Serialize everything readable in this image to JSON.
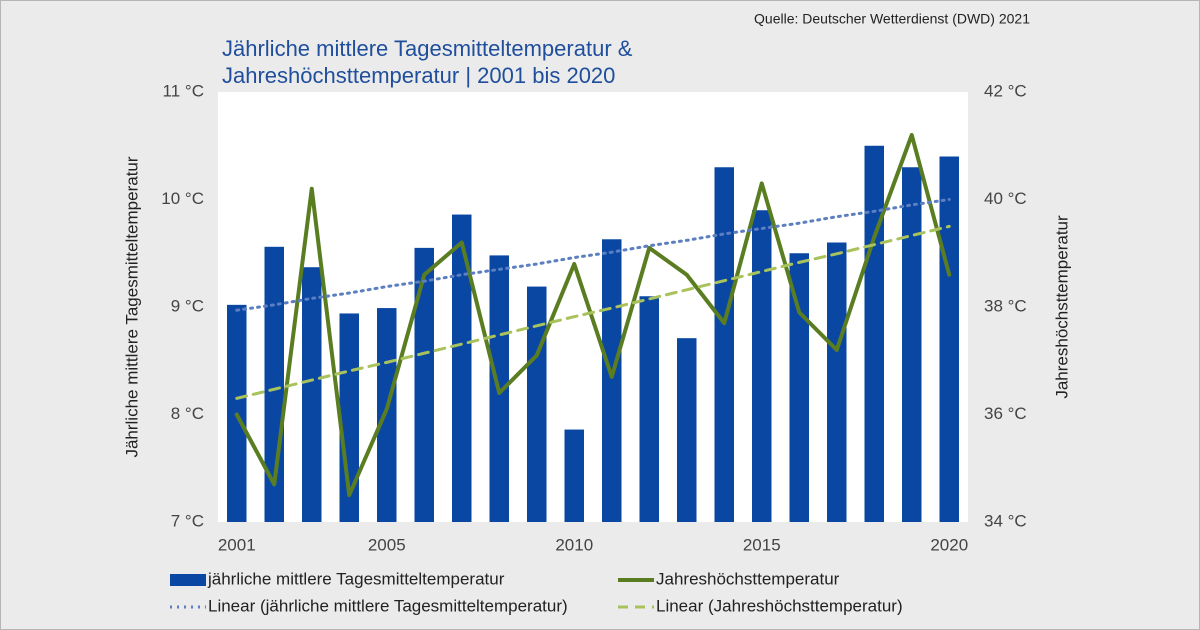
{
  "chart_data": {
    "type": "bar",
    "source": "Quelle: Deutscher Wetterdienst (DWD) 2021",
    "title": [
      "Jährliche mittlere Tagesmitteltemperatur &",
      "Jahreshöchsttemperatur | 2001 bis 2020"
    ],
    "ylabel": "Jährliche mittlere Tagesmitteltemperatur",
    "y2label": "Jahreshöchsttemperatur",
    "x": [
      2001,
      2002,
      2003,
      2004,
      2005,
      2006,
      2007,
      2008,
      2009,
      2010,
      2011,
      2012,
      2013,
      2014,
      2015,
      2016,
      2017,
      2018,
      2019,
      2020
    ],
    "xlim": [
      2000.5,
      2020.5
    ],
    "xticks": [
      2001,
      2005,
      2010,
      2015,
      2020
    ],
    "ylim": [
      7,
      11
    ],
    "yticks": [
      {
        "value": 7,
        "label": "7 °C"
      },
      {
        "value": 8,
        "label": "8 °C"
      },
      {
        "value": 9,
        "label": "9 °C"
      },
      {
        "value": 10,
        "label": "10 °C"
      },
      {
        "value": 11,
        "label": "11 °C"
      }
    ],
    "y2lim": [
      34,
      42
    ],
    "y2ticks": [
      {
        "value": 34,
        "label": "34 °C"
      },
      {
        "value": 36,
        "label": "36 °C"
      },
      {
        "value": 38,
        "label": "38 °C"
      },
      {
        "value": 40,
        "label": "40 °C"
      },
      {
        "value": 42,
        "label": "42 °C"
      }
    ],
    "series": [
      {
        "name": "jährliche mittlere Tagesmitteltemperatur",
        "type": "bar",
        "color": "#0a47a3",
        "values": [
          9.02,
          9.56,
          9.37,
          8.94,
          8.99,
          9.55,
          9.86,
          9.48,
          9.19,
          7.86,
          9.63,
          9.1,
          8.71,
          10.3,
          9.9,
          9.5,
          9.6,
          10.5,
          10.3,
          10.4
        ]
      },
      {
        "name": "Jahreshöchsttemperatur",
        "type": "line",
        "axis": "y2",
        "color": "#5a7d22",
        "values": [
          36.0,
          34.7,
          40.2,
          34.5,
          36.1,
          38.6,
          39.2,
          36.4,
          37.1,
          38.8,
          36.7,
          39.1,
          38.6,
          37.7,
          40.3,
          37.9,
          37.2,
          39.3,
          41.2,
          38.6
        ]
      },
      {
        "name": "Linear (jährliche mittlere Tagesmitteltemperatur)",
        "type": "dotted",
        "color": "#5b7fc0",
        "values": [
          8.97,
          9.02,
          9.08,
          9.13,
          9.19,
          9.24,
          9.3,
          9.35,
          9.4,
          9.46,
          9.51,
          9.57,
          9.62,
          9.68,
          9.73,
          9.78,
          9.84,
          9.89,
          9.95,
          10.0
        ]
      },
      {
        "name": "Linear (Jahreshöchsttemperatur)",
        "type": "dashed",
        "axis": "y2",
        "color": "#a9c25c",
        "values": [
          36.3,
          36.47,
          36.64,
          36.81,
          36.97,
          37.14,
          37.31,
          37.48,
          37.65,
          37.82,
          37.98,
          38.15,
          38.32,
          38.49,
          38.66,
          38.83,
          38.99,
          39.16,
          39.33,
          39.5
        ]
      }
    ]
  }
}
